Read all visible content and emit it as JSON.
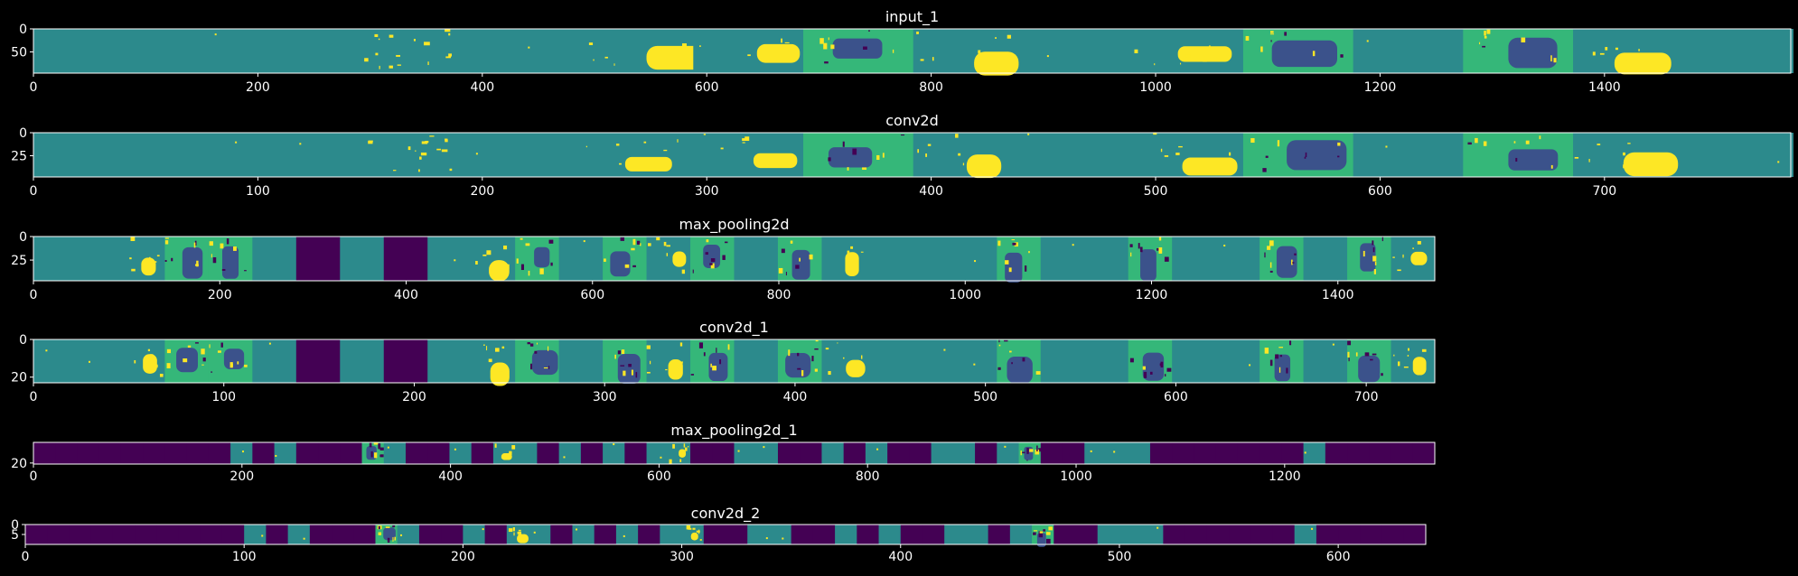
{
  "background": "#000000",
  "colors": {
    "purple": "#440154",
    "blue": "#3b528b",
    "teal": "#2c8a8c",
    "green": "#35b779",
    "yellow": "#fde725",
    "frame": "#ffffff"
  },
  "chart_data": [
    {
      "type": "heatmap",
      "title": "input_1",
      "xlim": [
        0,
        1566
      ],
      "ylim": [
        96,
        0
      ],
      "xticks": [
        0,
        200,
        400,
        600,
        800,
        1000,
        1200,
        1400
      ],
      "yticks": [
        0,
        50
      ],
      "tile_width": 98,
      "tiles": [
        "teal",
        "teal",
        "teal",
        "detail-teal",
        "teal",
        "bright",
        "bright",
        "detail-dark",
        "bright",
        "teal",
        "bright",
        "detail-dark",
        "teal",
        "detail-dark",
        "bright",
        "teal"
      ]
    },
    {
      "type": "heatmap",
      "title": "conv2d",
      "xlim": [
        0,
        783
      ],
      "ylim": [
        48,
        0
      ],
      "xticks": [
        0,
        100,
        200,
        300,
        400,
        500,
        600,
        700
      ],
      "yticks": [
        0,
        25
      ],
      "tile_width": 49,
      "tiles": [
        "teal",
        "teal",
        "teal",
        "detail-teal",
        "teal",
        "bright",
        "bright",
        "detail-dark",
        "bright",
        "teal",
        "bright",
        "detail-dark",
        "teal",
        "detail-dark",
        "bright",
        "teal"
      ]
    },
    {
      "type": "heatmap",
      "title": "max_pooling2d",
      "xlim": [
        0,
        1504
      ],
      "ylim": [
        47,
        0
      ],
      "xticks": [
        0,
        200,
        400,
        600,
        800,
        1000,
        1200,
        1400
      ],
      "yticks": [
        0,
        25
      ],
      "tile_width": 47,
      "tiles": [
        "teal",
        "teal",
        "bright",
        "detail-dark",
        "detail-dark",
        "teal",
        "purple",
        "teal",
        "purple",
        "teal",
        "bright",
        "detail-dark",
        "teal",
        "detail-dark",
        "bright",
        "detail-dark",
        "teal",
        "detail-dark",
        "bright",
        "teal",
        "teal",
        "teal",
        "detail-dark",
        "teal",
        "teal",
        "detail-dark",
        "teal",
        "teal",
        "detail-dark",
        "teal",
        "detail-dark",
        "bright"
      ]
    },
    {
      "type": "heatmap",
      "title": "conv2d_1",
      "xlim": [
        0,
        736
      ],
      "ylim": [
        23,
        0
      ],
      "xticks": [
        0,
        100,
        200,
        300,
        400,
        500,
        600,
        700
      ],
      "yticks": [
        0,
        20
      ],
      "tile_width": 23,
      "tiles": [
        "teal",
        "teal",
        "bright",
        "detail-dark",
        "detail-dark",
        "teal",
        "purple",
        "teal",
        "purple",
        "teal",
        "bright",
        "detail-dark",
        "teal",
        "detail-dark",
        "bright",
        "detail-dark",
        "teal",
        "detail-dark",
        "bright",
        "teal",
        "teal",
        "teal",
        "detail-dark",
        "teal",
        "teal",
        "detail-dark",
        "teal",
        "teal",
        "detail-dark",
        "teal",
        "detail-dark",
        "bright"
      ]
    },
    {
      "type": "heatmap",
      "title": "max_pooling2d_1",
      "xlim": [
        0,
        1344
      ],
      "ylim": [
        21,
        0
      ],
      "xticks": [
        0,
        200,
        400,
        600,
        800,
        1000,
        1200
      ],
      "yticks": [
        20
      ],
      "tile_width": 21,
      "tiles": [
        "purple",
        "purple",
        "purple",
        "purple",
        "purple",
        "purple",
        "purple",
        "purple",
        "purple",
        "teal",
        "purple",
        "teal",
        "purple",
        "purple",
        "purple",
        "detail-dark",
        "teal",
        "purple",
        "purple",
        "teal",
        "purple",
        "bright",
        "teal",
        "purple",
        "teal",
        "purple",
        "teal",
        "purple",
        "teal",
        "bright",
        "purple",
        "purple",
        "teal",
        "teal",
        "purple",
        "purple",
        "teal",
        "purple",
        "teal",
        "purple",
        "purple",
        "teal",
        "teal",
        "purple",
        "teal",
        "detail-dark",
        "purple",
        "purple",
        "teal",
        "teal",
        "teal",
        "purple",
        "purple",
        "purple",
        "purple",
        "purple",
        "purple",
        "purple",
        "teal",
        "purple",
        "purple",
        "purple",
        "purple",
        "purple"
      ]
    },
    {
      "type": "heatmap",
      "title": "conv2d_2",
      "xlim": [
        0,
        640
      ],
      "ylim": [
        10,
        0
      ],
      "xticks": [
        0,
        100,
        200,
        300,
        400,
        500,
        600
      ],
      "yticks": [
        0,
        5
      ],
      "tile_width": 10,
      "tiles": [
        "purple",
        "purple",
        "purple",
        "purple",
        "purple",
        "purple",
        "purple",
        "purple",
        "purple",
        "purple",
        "teal",
        "purple",
        "teal",
        "purple",
        "purple",
        "purple",
        "detail-dark",
        "teal",
        "purple",
        "purple",
        "teal",
        "purple",
        "bright",
        "teal",
        "purple",
        "teal",
        "purple",
        "teal",
        "purple",
        "teal",
        "bright",
        "purple",
        "purple",
        "teal",
        "teal",
        "purple",
        "purple",
        "teal",
        "purple",
        "teal",
        "purple",
        "purple",
        "teal",
        "teal",
        "purple",
        "teal",
        "detail-dark",
        "purple",
        "purple",
        "teal",
        "teal",
        "teal",
        "purple",
        "purple",
        "purple",
        "purple",
        "purple",
        "purple",
        "teal",
        "purple",
        "purple",
        "purple",
        "purple",
        "purple"
      ]
    }
  ]
}
